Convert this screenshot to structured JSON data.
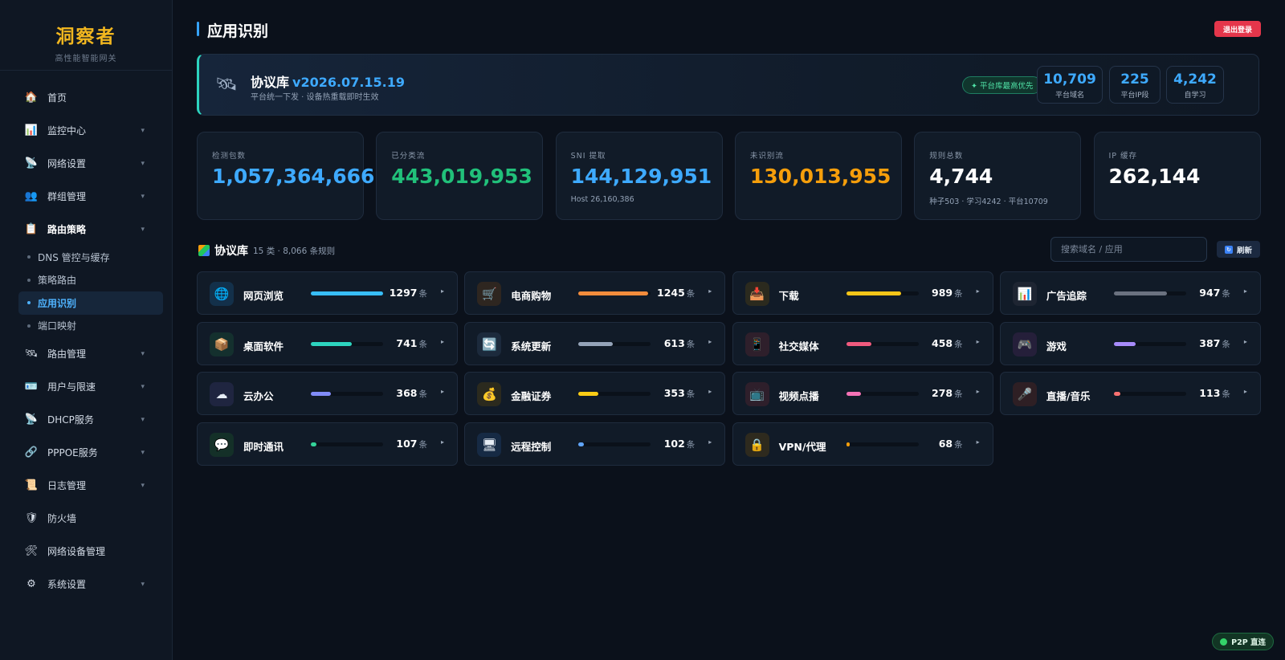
{
  "brand": {
    "title": "洞察者",
    "subtitle": "高性能智能网关"
  },
  "sidebar": {
    "items": [
      {
        "label": "首页",
        "icon": "house-icon",
        "glyph": "🏠",
        "chevron": false
      },
      {
        "label": "监控中心",
        "icon": "chart-icon",
        "glyph": "📊",
        "chevron": true
      },
      {
        "label": "网络设置",
        "icon": "satellite-icon",
        "glyph": "📡",
        "chevron": true
      },
      {
        "label": "群组管理",
        "icon": "group-icon",
        "glyph": "👥",
        "chevron": true
      },
      {
        "label": "路由策略",
        "icon": "clipboard-icon",
        "glyph": "📋",
        "chevron": true,
        "bold": true
      },
      {
        "label": "路由管理",
        "icon": "satellite-icon",
        "glyph": "🛰",
        "chevron": true
      },
      {
        "label": "用户与限速",
        "icon": "id-card-icon",
        "glyph": "🪪",
        "chevron": true
      },
      {
        "label": "DHCP服务",
        "icon": "antenna-icon",
        "glyph": "📡",
        "chevron": true
      },
      {
        "label": "PPPOE服务",
        "icon": "link-icon",
        "glyph": "🔗",
        "chevron": true
      },
      {
        "label": "日志管理",
        "icon": "scroll-icon",
        "glyph": "📜",
        "chevron": true
      },
      {
        "label": "防火墙",
        "icon": "shield-icon",
        "glyph": "🛡",
        "chevron": false
      },
      {
        "label": "网络设备管理",
        "icon": "tools-icon",
        "glyph": "🛠",
        "chevron": false
      },
      {
        "label": "系统设置",
        "icon": "gear-icon",
        "glyph": "⚙",
        "chevron": true
      }
    ],
    "chevron_glyph": "▾",
    "sub_items": [
      {
        "label": "DNS 管控与缓存",
        "active": false
      },
      {
        "label": "策略路由",
        "active": false
      },
      {
        "label": "应用识别",
        "active": true
      },
      {
        "label": "端口映射",
        "active": false
      }
    ]
  },
  "header": {
    "title": "应用识别",
    "logout_label": "退出登录"
  },
  "banner": {
    "icon": "satellite-icon",
    "glyph": "🛰",
    "title": "协议库",
    "version": "v2026.07.15.19",
    "subtitle": "平台统一下发 · 设备热重载即时生效",
    "priority_badge": "✦ 平台库最高优先",
    "stats": [
      {
        "value": "10,709",
        "label": "平台域名"
      },
      {
        "value": "225",
        "label": "平台IP段"
      },
      {
        "value": "4,242",
        "label": "自学习"
      }
    ]
  },
  "stats": [
    {
      "label": "检测包数",
      "value": "1,057,364,666",
      "color": "#3eaaff",
      "sub": ""
    },
    {
      "label": "已分类流",
      "value": "443,019,953",
      "color": "#21c07a",
      "sub": ""
    },
    {
      "label": "SNI 提取",
      "value": "144,129,951",
      "color": "#3eaaff",
      "sub": "Host 26,160,386"
    },
    {
      "label": "未识别流",
      "value": "130,013,955",
      "color": "#f59e0b",
      "sub": ""
    },
    {
      "label": "规则总数",
      "value": "4,744",
      "color": "#ffffff",
      "sub": "种子503 · 学习4242 · 平台10709"
    },
    {
      "label": "IP 缓存",
      "value": "262,144",
      "color": "#ffffff",
      "sub": ""
    }
  ],
  "library": {
    "title": "协议库",
    "meta": "15 类 · 8,066 条规则",
    "search_placeholder": "搜索域名 / 应用",
    "refresh_label": "刷新",
    "unit": "条",
    "arrow": "▸",
    "categories": [
      {
        "name": "网页浏览",
        "count": "1297",
        "fraction": 1.0,
        "color": "#38bdf8",
        "icon": "globe-icon",
        "glyph": "🌐",
        "icon_bg": "#13304a"
      },
      {
        "name": "电商购物",
        "count": "1245",
        "fraction": 0.96,
        "color": "#f28c3c",
        "icon": "cart-icon",
        "glyph": "🛒",
        "icon_bg": "#2e2620"
      },
      {
        "name": "下载",
        "count": "989",
        "fraction": 0.76,
        "color": "#f5c518",
        "icon": "inbox-icon",
        "glyph": "📥",
        "icon_bg": "#2b2a1e"
      },
      {
        "name": "广告追踪",
        "count": "947",
        "fraction": 0.73,
        "color": "#6b7280",
        "icon": "chart-icon",
        "glyph": "📊",
        "icon_bg": "#1e2532"
      },
      {
        "name": "桌面软件",
        "count": "741",
        "fraction": 0.57,
        "color": "#2dd4bf",
        "icon": "package-icon",
        "glyph": "📦",
        "icon_bg": "#14302e"
      },
      {
        "name": "系统更新",
        "count": "613",
        "fraction": 0.47,
        "color": "#94a3b8",
        "icon": "refresh-icon",
        "glyph": "🔄",
        "icon_bg": "#1c2a3c"
      },
      {
        "name": "社交媒体",
        "count": "458",
        "fraction": 0.35,
        "color": "#f05a7e",
        "icon": "phone-icon",
        "glyph": "📱",
        "icon_bg": "#2e1f2b"
      },
      {
        "name": "游戏",
        "count": "387",
        "fraction": 0.3,
        "color": "#a78bfa",
        "icon": "gamepad-icon",
        "glyph": "🎮",
        "icon_bg": "#251f3a"
      },
      {
        "name": "云办公",
        "count": "368",
        "fraction": 0.28,
        "color": "#818cf8",
        "icon": "cloud-icon",
        "glyph": "☁",
        "icon_bg": "#1f2540"
      },
      {
        "name": "金融证券",
        "count": "353",
        "fraction": 0.27,
        "color": "#facc15",
        "icon": "money-bag-icon",
        "glyph": "💰",
        "icon_bg": "#2b2a1e"
      },
      {
        "name": "视频点播",
        "count": "278",
        "fraction": 0.21,
        "color": "#f472b6",
        "icon": "tv-icon",
        "glyph": "📺",
        "icon_bg": "#2e1f2b"
      },
      {
        "name": "直播/音乐",
        "count": "113",
        "fraction": 0.09,
        "color": "#f87171",
        "icon": "microphone-icon",
        "glyph": "🎤",
        "icon_bg": "#2e1f24"
      },
      {
        "name": "即时通讯",
        "count": "107",
        "fraction": 0.08,
        "color": "#34d399",
        "icon": "speech-bubble-icon",
        "glyph": "💬",
        "icon_bg": "#143028"
      },
      {
        "name": "远程控制",
        "count": "102",
        "fraction": 0.08,
        "color": "#60a5fa",
        "icon": "monitor-icon",
        "glyph": "🖥",
        "icon_bg": "#162a44"
      },
      {
        "name": "VPN/代理",
        "count": "68",
        "fraction": 0.05,
        "color": "#f59e0b",
        "icon": "lock-icon",
        "glyph": "🔒",
        "icon_bg": "#2e2a1e"
      }
    ]
  },
  "status": {
    "p2p_label": "P2P 直连"
  }
}
